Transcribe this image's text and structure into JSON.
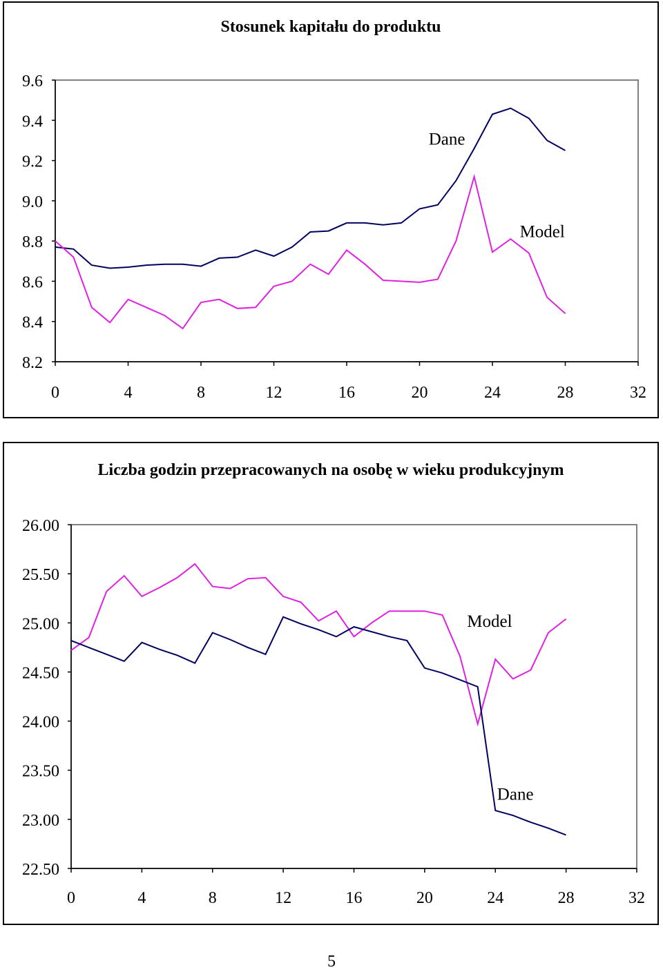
{
  "page_number": "5",
  "chart_data": [
    {
      "type": "line",
      "title": "Stosunek kapitału do produktu",
      "xlabel": "",
      "ylabel": "",
      "xlim": [
        0,
        32
      ],
      "ylim": [
        8.2,
        9.6
      ],
      "x_ticks": [
        0,
        4,
        8,
        12,
        16,
        20,
        24,
        28,
        32
      ],
      "y_ticks": [
        "8.2",
        "8.4",
        "8.6",
        "8.8",
        "9.0",
        "9.2",
        "9.4",
        "9.6"
      ],
      "grid": false,
      "annotations": [
        {
          "text": "Dane",
          "x": 20.5,
          "y": 9.28
        },
        {
          "text": "Model",
          "x": 25.5,
          "y": 8.82
        }
      ],
      "series": [
        {
          "color": "#000060",
          "x": [
            0,
            1,
            2,
            3,
            4,
            5,
            6,
            7,
            8,
            9,
            10,
            11,
            12,
            13,
            14,
            15,
            16,
            17,
            18,
            19,
            20,
            21,
            22,
            23,
            24,
            25,
            26,
            27,
            28
          ],
          "y": [
            8.77,
            8.76,
            8.68,
            8.665,
            8.67,
            8.68,
            8.685,
            8.685,
            8.675,
            8.715,
            8.72,
            8.755,
            8.725,
            8.77,
            8.845,
            8.85,
            8.89,
            8.89,
            8.88,
            8.89,
            8.96,
            8.98,
            9.1,
            9.26,
            9.43,
            9.46,
            9.41,
            9.3,
            9.25
          ]
        },
        {
          "color": "#e020e0",
          "x": [
            0,
            1,
            2,
            3,
            4,
            5,
            6,
            7,
            8,
            9,
            10,
            11,
            12,
            13,
            14,
            15,
            16,
            17,
            18,
            19,
            20,
            21,
            22,
            23,
            24,
            25,
            26,
            27,
            28
          ],
          "y": [
            8.8,
            8.72,
            8.47,
            8.395,
            8.51,
            8.47,
            8.43,
            8.365,
            8.495,
            8.51,
            8.465,
            8.47,
            8.575,
            8.6,
            8.685,
            8.635,
            8.755,
            8.685,
            8.605,
            8.6,
            8.595,
            8.61,
            8.8,
            9.12,
            8.745,
            8.81,
            8.74,
            8.52,
            8.44
          ]
        }
      ]
    },
    {
      "type": "line",
      "title": "Liczba godzin przepracowanych na osobę w wieku produkcyjnym",
      "xlabel": "",
      "ylabel": "",
      "xlim": [
        0,
        32
      ],
      "ylim": [
        22.5,
        26.0
      ],
      "x_ticks": [
        0,
        4,
        8,
        12,
        16,
        20,
        24,
        28,
        32
      ],
      "y_ticks": [
        "22.50",
        "23.00",
        "23.50",
        "24.00",
        "24.50",
        "25.00",
        "25.50",
        "26.00"
      ],
      "grid": false,
      "annotations": [
        {
          "text": "Model",
          "x": 22.4,
          "y": 24.96
        },
        {
          "text": "Dane",
          "x": 24.1,
          "y": 23.2
        }
      ],
      "series": [
        {
          "color": "#e020e0",
          "x": [
            0,
            1,
            2,
            3,
            4,
            5,
            6,
            7,
            8,
            9,
            10,
            11,
            12,
            13,
            14,
            15,
            16,
            17,
            18,
            19,
            20,
            21,
            22,
            23,
            24,
            25,
            26,
            27,
            28
          ],
          "y": [
            24.72,
            24.85,
            25.32,
            25.48,
            25.27,
            25.36,
            25.46,
            25.6,
            25.37,
            25.35,
            25.45,
            25.46,
            25.27,
            25.21,
            25.02,
            25.12,
            24.86,
            25.0,
            25.12,
            25.12,
            25.12,
            25.08,
            24.66,
            23.97,
            24.63,
            24.43,
            24.52,
            24.9,
            25.04
          ]
        },
        {
          "color": "#000060",
          "x": [
            0,
            1,
            2,
            3,
            4,
            5,
            6,
            7,
            8,
            9,
            10,
            11,
            12,
            13,
            14,
            15,
            16,
            17,
            18,
            19,
            20,
            21,
            22,
            23,
            24,
            25,
            26,
            27,
            28
          ],
          "y": [
            24.82,
            24.75,
            24.68,
            24.61,
            24.8,
            24.73,
            24.67,
            24.59,
            24.9,
            24.83,
            24.75,
            24.68,
            25.06,
            24.99,
            24.93,
            24.86,
            24.96,
            24.91,
            24.86,
            24.82,
            24.54,
            24.49,
            24.42,
            24.35,
            23.09,
            23.04,
            22.97,
            22.91,
            22.84
          ]
        }
      ]
    }
  ]
}
